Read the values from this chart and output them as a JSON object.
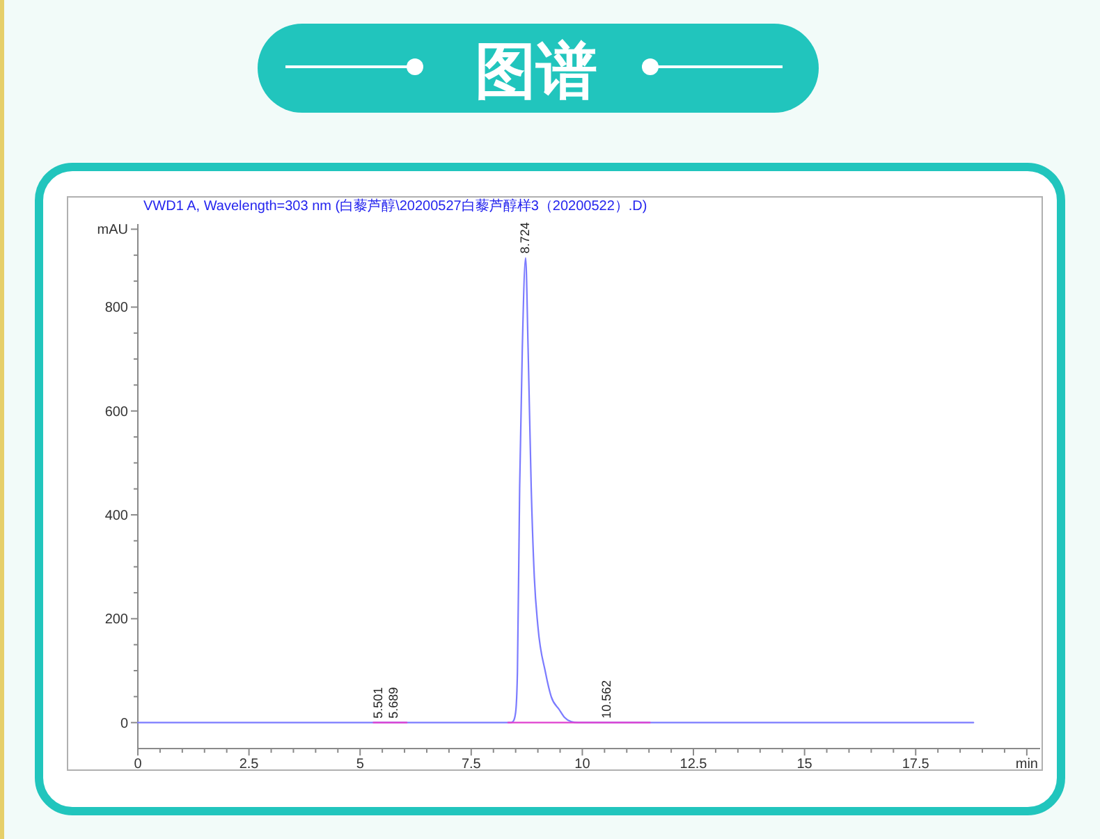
{
  "chart_data": {
    "type": "line",
    "title": "图谱",
    "subtitle": "VWD1 A, Wavelength=303 nm (白藜芦醇\\20200527白藜芦醇样3（20200522）.D)",
    "xlim": [
      0,
      20.3
    ],
    "ylim": [
      -50,
      960
    ],
    "xticks": [
      0,
      {
        "value": 0.5,
        "label": null
      },
      {
        "value": 1,
        "label": null
      },
      {
        "value": 1.5,
        "label": null
      },
      {
        "value": 2,
        "label": null
      },
      2.5,
      {
        "value": 3,
        "label": null
      },
      {
        "value": 3.5,
        "label": null
      },
      {
        "value": 4,
        "label": null
      },
      {
        "value": 4.5,
        "label": null
      },
      5,
      {
        "value": 5.5,
        "label": null
      },
      {
        "value": 6,
        "label": null
      },
      {
        "value": 6.5,
        "label": null
      },
      {
        "value": 7,
        "label": null
      },
      7.5,
      {
        "value": 8,
        "label": null
      },
      {
        "value": 8.5,
        "label": null
      },
      {
        "value": 9,
        "label": null
      },
      {
        "value": 9.5,
        "label": null
      },
      10,
      {
        "value": 10.5,
        "label": null
      },
      {
        "value": 11,
        "label": null
      },
      {
        "value": 11.5,
        "label": null
      },
      {
        "value": 12,
        "label": null
      },
      12.5,
      {
        "value": 13,
        "label": null
      },
      {
        "value": 13.5,
        "label": null
      },
      {
        "value": 14,
        "label": null
      },
      {
        "value": 14.5,
        "label": null
      },
      15,
      {
        "value": 15.5,
        "label": null
      },
      {
        "value": 16,
        "label": null
      },
      {
        "value": 16.5,
        "label": null
      },
      {
        "value": 17,
        "label": null
      },
      17.5,
      {
        "value": 18,
        "label": null
      },
      {
        "value": 18.5,
        "label": null
      },
      {
        "value": 19,
        "label": null
      },
      {
        "value": 19.5,
        "label": null
      },
      {
        "value": 20,
        "label": "min"
      }
    ],
    "yticks": [
      0,
      {
        "value": 50,
        "label": null
      },
      {
        "value": 100,
        "label": null
      },
      {
        "value": 150,
        "label": null
      },
      200,
      {
        "value": 250,
        "label": null
      },
      {
        "value": 300,
        "label": null
      },
      {
        "value": 350,
        "label": null
      },
      400,
      {
        "value": 450,
        "label": null
      },
      {
        "value": 500,
        "label": null
      },
      {
        "value": 550,
        "label": null
      },
      600,
      {
        "value": 650,
        "label": null
      },
      {
        "value": 700,
        "label": null
      },
      {
        "value": 750,
        "label": null
      },
      800,
      {
        "value": 850,
        "label": null
      },
      {
        "value": 900,
        "label": null
      },
      {
        "value": 950,
        "label": "mAU"
      }
    ],
    "series": [
      {
        "color": "#7b7bff",
        "x": [
          0,
          8.4,
          8.45,
          8.5,
          8.54,
          8.59,
          8.65,
          8.724,
          8.78,
          8.85,
          8.92,
          9.0,
          9.17,
          9.3,
          9.48,
          9.6,
          9.75,
          9.9,
          18.8
        ],
        "values": [
          0,
          0,
          3,
          20,
          97,
          453,
          721,
          895,
          721,
          453,
          280,
          186,
          97,
          50,
          25,
          10,
          2,
          0,
          0
        ]
      },
      {
        "color": "#e040d0",
        "x": [
          5.3,
          6.05,
          7,
          8.33,
          10.2,
          11.52
        ],
        "values": [
          0,
          0,
          null,
          0,
          0,
          0
        ]
      }
    ],
    "annotations": [
      {
        "text": "5.501",
        "x": 5.501,
        "y": 0
      },
      {
        "text": "5.689",
        "x": 5.689,
        "y": 0
      },
      {
        "text": "8.724",
        "x": 8.724,
        "y": 895
      },
      {
        "text": "10.562",
        "x": 10.562,
        "y": 0
      }
    ]
  }
}
